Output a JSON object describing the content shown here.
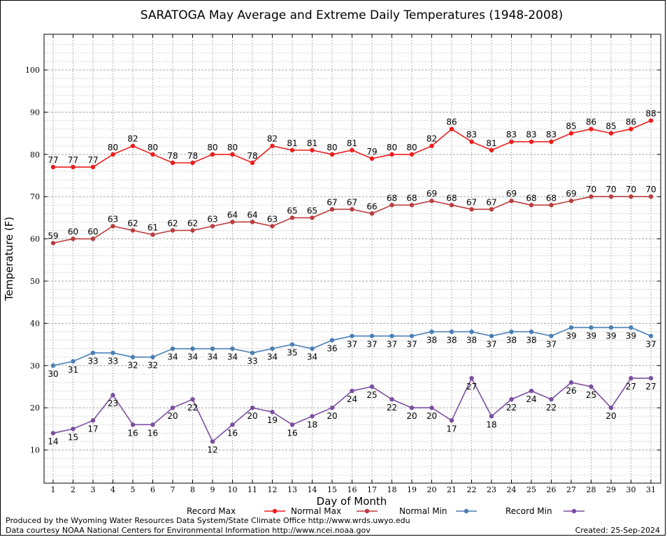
{
  "chart_data": {
    "type": "line",
    "title": "SARATOGA May Average and Extreme Daily Temperatures (1948-2008)",
    "xlabel": "Day of Month",
    "ylabel": "Temperature (F)",
    "x": [
      1,
      2,
      3,
      4,
      5,
      6,
      7,
      8,
      9,
      10,
      11,
      12,
      13,
      14,
      15,
      16,
      17,
      18,
      19,
      20,
      21,
      22,
      23,
      24,
      25,
      26,
      27,
      28,
      29,
      30,
      31
    ],
    "ylim": [
      0,
      108
    ],
    "yticks": [
      10,
      20,
      30,
      40,
      50,
      60,
      70,
      80,
      90,
      100
    ],
    "grid": true,
    "legend_position": "bottom",
    "series": [
      {
        "name": "Record Max",
        "color": "#ee1c1c",
        "label_side": "above",
        "values": [
          77,
          77,
          77,
          80,
          82,
          80,
          78,
          78,
          80,
          80,
          78,
          82,
          81,
          81,
          80,
          81,
          79,
          80,
          80,
          82,
          86,
          83,
          81,
          83,
          83,
          83,
          85,
          86,
          85,
          86,
          88
        ]
      },
      {
        "name": "Normal Max",
        "color": "#bb3c3c",
        "label_side": "above",
        "values": [
          59,
          60,
          60,
          63,
          62,
          61,
          62,
          62,
          63,
          64,
          64,
          63,
          65,
          65,
          67,
          67,
          66,
          68,
          68,
          69,
          68,
          67,
          67,
          69,
          68,
          68,
          69,
          70,
          70,
          70,
          70
        ]
      },
      {
        "name": "Normal Min",
        "color": "#4a7fb5",
        "label_side": "below",
        "values": [
          30,
          31,
          33,
          33,
          32,
          32,
          34,
          34,
          34,
          34,
          33,
          34,
          35,
          34,
          36,
          37,
          37,
          37,
          37,
          38,
          38,
          38,
          37,
          38,
          38,
          37,
          39,
          39,
          39,
          39,
          37
        ]
      },
      {
        "name": "Record Min",
        "color": "#7a4ea0",
        "label_side": "below",
        "values": [
          14,
          15,
          17,
          23,
          16,
          16,
          20,
          22,
          12,
          16,
          20,
          19,
          16,
          18,
          20,
          24,
          25,
          22,
          20,
          20,
          17,
          27,
          18,
          22,
          24,
          22,
          26,
          25,
          20,
          27,
          27
        ]
      }
    ]
  },
  "footer": {
    "produced_by": "Produced by the Wyoming Water Resources Data System/State Climate Office http://www.wrds.uwyo.edu",
    "courtesy": "Data courtesy NOAA National Centers for Environmental Information http://www.ncei.noaa.gov",
    "created": "Created:  25-Sep-2024"
  }
}
